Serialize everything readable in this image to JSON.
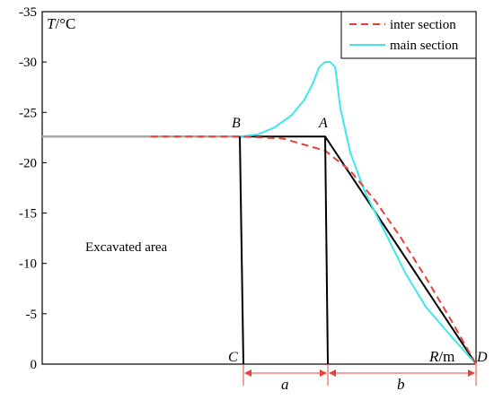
{
  "chart_data": {
    "type": "line",
    "ylabel_T": "T",
    "ylabel_unit": "/°C",
    "xlabel_R": "R",
    "xlabel_unit": "/m",
    "ylim": [
      0,
      -35
    ],
    "y_ticks": [
      "-35",
      "-30",
      "-25",
      "-20",
      "-15",
      "-10",
      "-5",
      "0"
    ],
    "y_tick_values": [
      -35,
      -30,
      -25,
      -20,
      -15,
      -10,
      -5,
      0
    ],
    "grid": false,
    "legend_position": "top-right",
    "colors": {
      "inter": "#e8413a",
      "main": "#3fe6ee",
      "frame": "#000000",
      "dim": "#e8413a",
      "baseline_gray": "#a8a8a8"
    },
    "series": [
      {
        "name": "inter section",
        "style": "dashed",
        "x": [
          0,
          1,
          1.5,
          2,
          2.5,
          3,
          3.5,
          4,
          4.5,
          5
        ],
        "values": [
          -22.6,
          -22.6,
          -22.4,
          -21.2,
          -19.2,
          -16.2,
          -12.6,
          -8.6,
          -4.4,
          0
        ]
      },
      {
        "name": "main section",
        "style": "solid",
        "x": [
          0,
          1,
          1.2,
          1.4,
          1.6,
          1.75,
          1.85,
          1.93,
          2.0,
          2.1,
          2.2,
          2.3,
          2.5,
          2.8,
          3.2,
          3.6,
          4.0,
          4.5,
          5
        ],
        "values": [
          -22.6,
          -22.6,
          -22.8,
          -23.5,
          -24.7,
          -26.2,
          -27.8,
          -29.5,
          -30,
          -30,
          -29.5,
          -25.5,
          -21.0,
          -17.0,
          -13.0,
          -9.0,
          -5.7,
          -2.8,
          0
        ]
      },
      {
        "name": "",
        "style": "boundary",
        "x": [
          -1.2,
          1,
          2,
          5
        ],
        "values": [
          -22.6,
          -22.6,
          -22.6,
          0
        ]
      }
    ],
    "annotations": {
      "B": "B",
      "A": "A",
      "C": "C",
      "D": "D",
      "a": "a",
      "b": "b",
      "region": "Excavated area"
    }
  }
}
